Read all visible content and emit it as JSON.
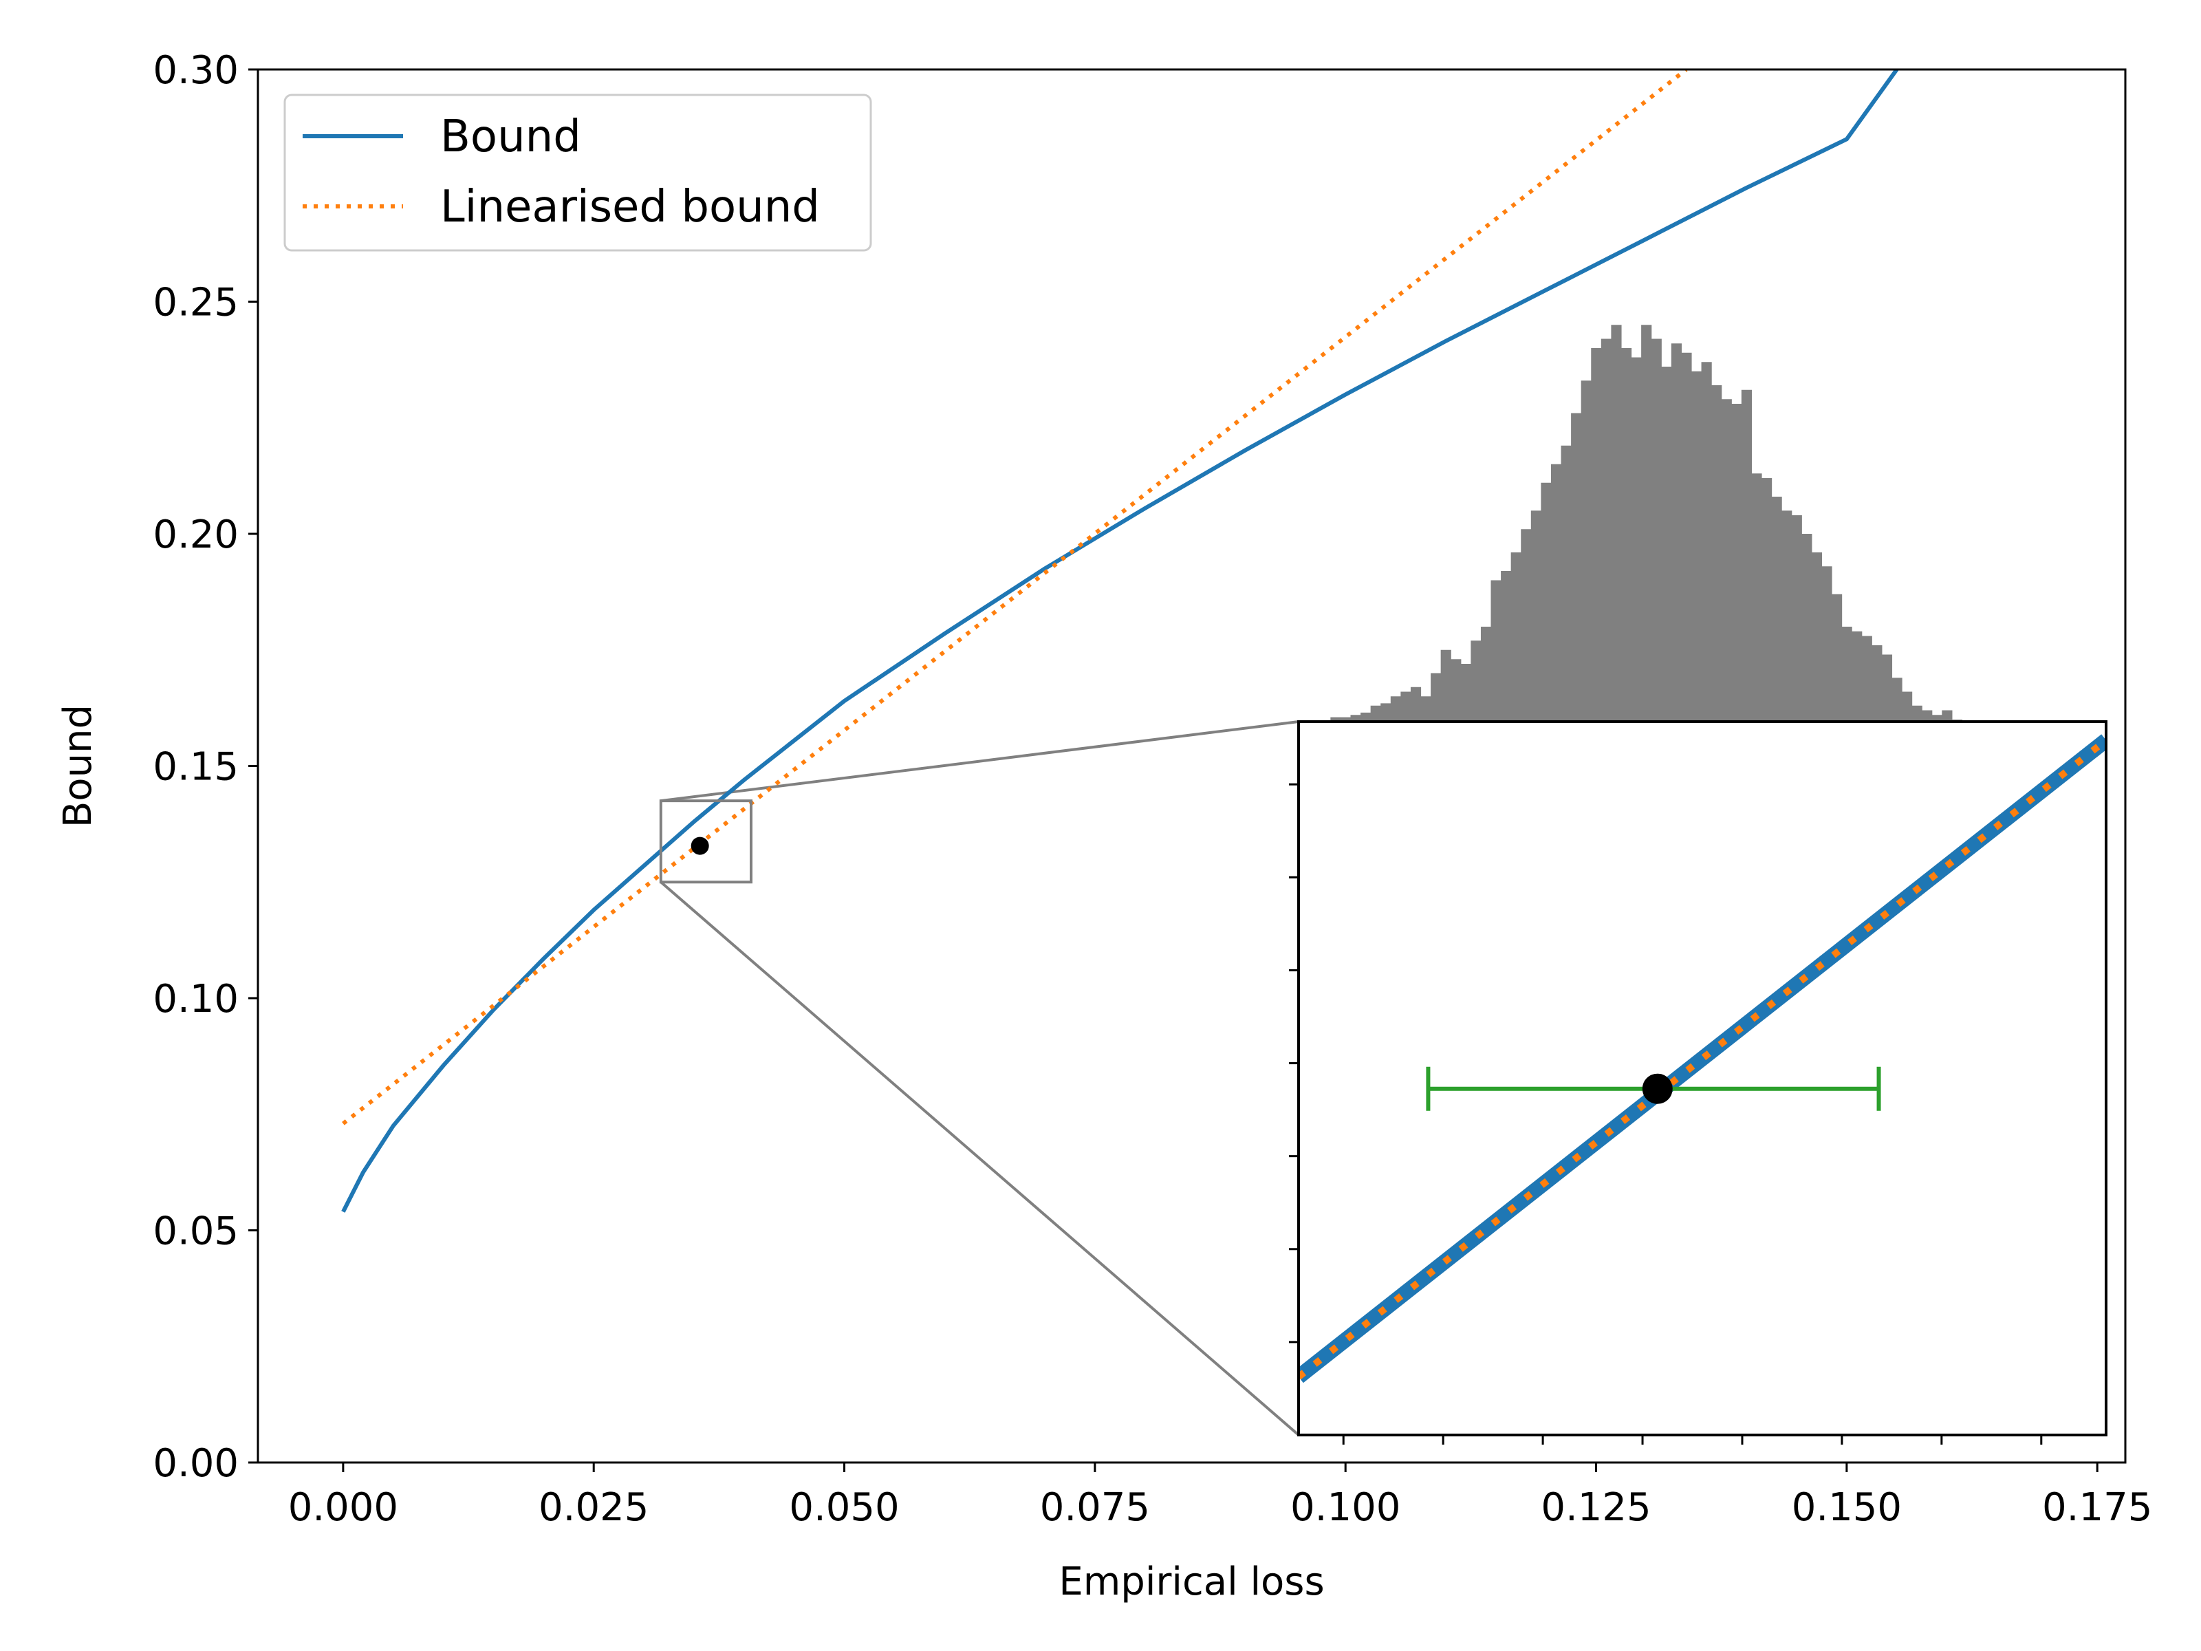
{
  "chart_data": {
    "type": "line",
    "xlabel": "Empirical loss",
    "ylabel": "Bound",
    "xlim": [
      -0.0085,
      0.1778
    ],
    "ylim": [
      0.0,
      0.3
    ],
    "xticks": [
      "0.000",
      "0.025",
      "0.050",
      "0.075",
      "0.100",
      "0.125",
      "0.150",
      "0.175"
    ],
    "xtick_values": [
      0.0,
      0.025,
      0.05,
      0.075,
      0.1,
      0.125,
      0.15,
      0.175
    ],
    "yticks": [
      "0.00",
      "0.05",
      "0.10",
      "0.15",
      "0.20",
      "0.25",
      "0.30"
    ],
    "ytick_values": [
      0.0,
      0.05,
      0.1,
      0.15,
      0.2,
      0.25,
      0.3
    ],
    "grid": false,
    "legend_position": "top-left",
    "series": [
      {
        "name": "Bound",
        "style": "solid",
        "color": "#1f77b4",
        "x": [
          0.0,
          0.002,
          0.005,
          0.01,
          0.015,
          0.02,
          0.025,
          0.03,
          0.035,
          0.04,
          0.045,
          0.05,
          0.06,
          0.07,
          0.08,
          0.09,
          0.1,
          0.11,
          0.12,
          0.13,
          0.14,
          0.15,
          0.155
        ],
        "y": [
          0.054,
          0.0625,
          0.0725,
          0.0855,
          0.0975,
          0.1085,
          0.119,
          0.1285,
          0.138,
          0.147,
          0.1555,
          0.164,
          0.1785,
          0.1925,
          0.2055,
          0.218,
          0.23,
          0.2415,
          0.2525,
          0.2635,
          0.2745,
          0.285,
          0.3
        ]
      },
      {
        "name": "Linearised bound",
        "style": "dotted",
        "color": "#ff7f0e",
        "x": [
          0.0,
          0.134
        ],
        "y": [
          0.073,
          0.3
        ]
      }
    ],
    "highlight_point": {
      "x": 0.0356,
      "y": 0.1328,
      "color": "#000000"
    },
    "zoom_box": {
      "x0": 0.0317,
      "x1": 0.0407,
      "y0": 0.125,
      "y1": 0.1425,
      "color": "#808080"
    },
    "histogram": {
      "color": "#808080",
      "baseline": 0.155,
      "bin_start": 0.0985,
      "bin_width": 0.001,
      "heights": [
        0.1605,
        0.1605,
        0.161,
        0.1615,
        0.163,
        0.1635,
        0.165,
        0.166,
        0.167,
        0.165,
        0.17,
        0.175,
        0.173,
        0.172,
        0.177,
        0.18,
        0.19,
        0.192,
        0.196,
        0.201,
        0.205,
        0.211,
        0.215,
        0.219,
        0.226,
        0.233,
        0.24,
        0.242,
        0.245,
        0.24,
        0.238,
        0.245,
        0.242,
        0.236,
        0.241,
        0.239,
        0.235,
        0.237,
        0.232,
        0.229,
        0.228,
        0.231,
        0.213,
        0.212,
        0.208,
        0.205,
        0.204,
        0.2,
        0.196,
        0.193,
        0.187,
        0.18,
        0.179,
        0.178,
        0.176,
        0.174,
        0.169,
        0.166,
        0.163,
        0.162,
        0.161,
        0.162,
        0.16,
        0.159,
        0.158,
        0.158,
        0.157,
        0.157,
        0.156,
        0.156
      ]
    },
    "inset": {
      "x_data_range": [
        0.0955,
        0.1765
      ],
      "y_data_range": [
        0.0,
        0.1535
      ],
      "line_start_y": 0.0125,
      "line_end_y": 0.1495,
      "point": {
        "x": 0.1315,
        "y": 0.0745
      },
      "errorbar": {
        "x_low": 0.1085,
        "x_high": 0.1537,
        "y": 0.0745,
        "color": "#2ca02c"
      }
    }
  }
}
